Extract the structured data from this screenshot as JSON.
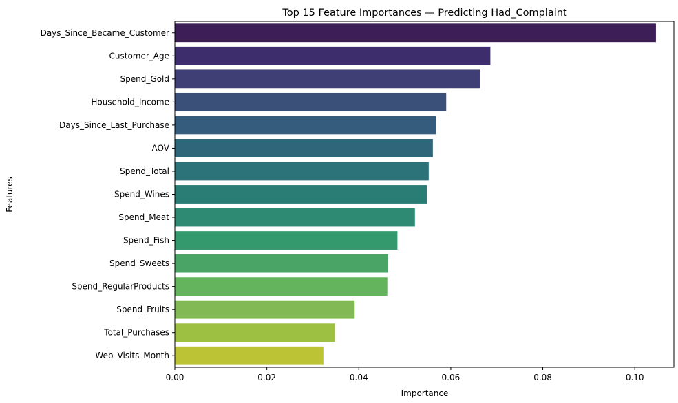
{
  "chart_data": {
    "type": "bar",
    "orientation": "horizontal",
    "title": "Top 15 Feature Importances — Predicting Had_Complaint",
    "xlabel": "Importance",
    "ylabel": "Features",
    "xlim": [
      0,
      0.1085
    ],
    "xticks": [
      0.0,
      0.02,
      0.04,
      0.06,
      0.08,
      0.1
    ],
    "xtick_labels": [
      "0.00",
      "0.02",
      "0.04",
      "0.06",
      "0.08",
      "0.10"
    ],
    "grid": false,
    "categories": [
      "Days_Since_Became_Customer",
      "Customer_Age",
      "Spend_Gold",
      "Household_Income",
      "Days_Since_Last_Purchase",
      "AOV",
      "Spend_Total",
      "Spend_Wines",
      "Spend_Meat",
      "Spend_Fish",
      "Spend_Sweets",
      "Spend_RegularProducts",
      "Spend_Fruits",
      "Total_Purchases",
      "Web_Visits_Month"
    ],
    "values": [
      0.1046,
      0.0686,
      0.0663,
      0.059,
      0.0568,
      0.0561,
      0.0552,
      0.0548,
      0.0522,
      0.0484,
      0.0464,
      0.0462,
      0.0391,
      0.0348,
      0.0323
    ],
    "colors": [
      "#3e1e56",
      "#3e2d6c",
      "#403f75",
      "#3b5079",
      "#355c7d",
      "#2f667a",
      "#2b7279",
      "#297d75",
      "#2e8a72",
      "#34996c",
      "#4aa466",
      "#64b35d",
      "#82b954",
      "#9ec042",
      "#bcc435"
    ]
  }
}
